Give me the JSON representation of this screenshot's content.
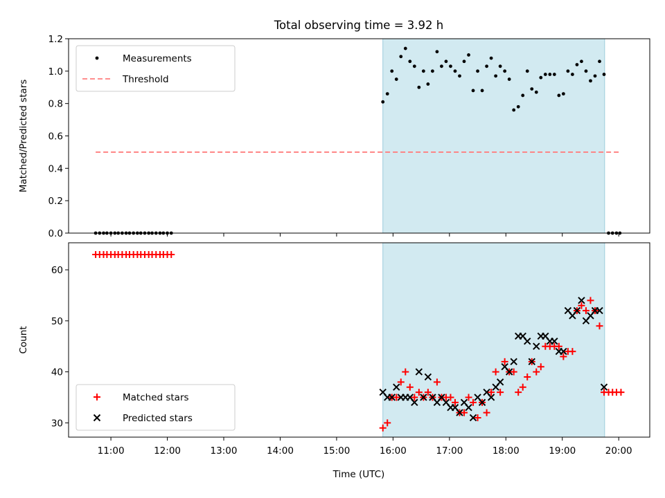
{
  "chart_data": {
    "title": "Total observing time = 3.92 h",
    "shaded_band": {
      "start_h": 15.82,
      "end_h": 19.75,
      "color": "#add8e6"
    },
    "xlim": [
      10.25,
      20.55
    ],
    "xticks": [
      {
        "h": 11,
        "label": "11:00"
      },
      {
        "h": 12,
        "label": "12:00"
      },
      {
        "h": 13,
        "label": "13:00"
      },
      {
        "h": 14,
        "label": "14:00"
      },
      {
        "h": 15,
        "label": "15:00"
      },
      {
        "h": 16,
        "label": "16:00"
      },
      {
        "h": 17,
        "label": "17:00"
      },
      {
        "h": 18,
        "label": "18:00"
      },
      {
        "h": 19,
        "label": "19:00"
      },
      {
        "h": 20,
        "label": "20:00"
      }
    ],
    "xlabel": "Time (UTC)",
    "panels": [
      {
        "type": "scatter",
        "ylabel": "Matched/Predicted stars",
        "ylim": [
          0,
          1.2
        ],
        "yticks": [
          {
            "v": 0.0,
            "label": "0.0"
          },
          {
            "v": 0.2,
            "label": "0.2"
          },
          {
            "v": 0.4,
            "label": "0.4"
          },
          {
            "v": 0.6,
            "label": "0.6"
          },
          {
            "v": 0.8,
            "label": "0.8"
          },
          {
            "v": 1.0,
            "label": "1.0"
          },
          {
            "v": 1.2,
            "label": "1.2"
          }
        ],
        "legend": {
          "position": "upper left",
          "entries": [
            "Measurements",
            "Threshold"
          ]
        },
        "threshold": {
          "name": "Threshold",
          "y": 0.5,
          "x_range": [
            10.73,
            20.02
          ],
          "color": "#ff7f7f"
        },
        "series": [
          {
            "name": "Measurements",
            "color": "#000000",
            "points": [
              [
                10.73,
                0
              ],
              [
                10.8,
                0
              ],
              [
                10.87,
                0
              ],
              [
                10.93,
                0
              ],
              [
                11.0,
                0
              ],
              [
                11.07,
                0
              ],
              [
                11.13,
                0
              ],
              [
                11.2,
                0
              ],
              [
                11.27,
                0
              ],
              [
                11.33,
                0
              ],
              [
                11.4,
                0
              ],
              [
                11.47,
                0
              ],
              [
                11.53,
                0
              ],
              [
                11.6,
                0
              ],
              [
                11.67,
                0
              ],
              [
                11.73,
                0
              ],
              [
                11.8,
                0
              ],
              [
                11.87,
                0
              ],
              [
                11.93,
                0
              ],
              [
                12.0,
                0
              ],
              [
                12.07,
                0
              ],
              [
                15.82,
                0.81
              ],
              [
                15.9,
                0.86
              ],
              [
                15.98,
                1.0
              ],
              [
                16.06,
                0.95
              ],
              [
                16.14,
                1.09
              ],
              [
                16.22,
                1.14
              ],
              [
                16.3,
                1.06
              ],
              [
                16.38,
                1.03
              ],
              [
                16.46,
                0.9
              ],
              [
                16.54,
                1.0
              ],
              [
                16.62,
                0.92
              ],
              [
                16.7,
                1.0
              ],
              [
                16.78,
                1.12
              ],
              [
                16.86,
                1.03
              ],
              [
                16.94,
                1.06
              ],
              [
                17.02,
                1.03
              ],
              [
                17.1,
                1.0
              ],
              [
                17.18,
                0.97
              ],
              [
                17.26,
                1.06
              ],
              [
                17.34,
                1.1
              ],
              [
                17.42,
                0.88
              ],
              [
                17.5,
                1.0
              ],
              [
                17.58,
                0.88
              ],
              [
                17.66,
                1.03
              ],
              [
                17.74,
                1.08
              ],
              [
                17.82,
                0.97
              ],
              [
                17.9,
                1.03
              ],
              [
                17.98,
                1.0
              ],
              [
                18.06,
                0.95
              ],
              [
                18.14,
                0.76
              ],
              [
                18.22,
                0.78
              ],
              [
                18.3,
                0.85
              ],
              [
                18.38,
                1.0
              ],
              [
                18.46,
                0.89
              ],
              [
                18.54,
                0.87
              ],
              [
                18.62,
                0.96
              ],
              [
                18.7,
                0.98
              ],
              [
                18.78,
                0.98
              ],
              [
                18.86,
                0.98
              ],
              [
                18.94,
                0.85
              ],
              [
                19.02,
                0.86
              ],
              [
                19.1,
                1.0
              ],
              [
                19.18,
                0.98
              ],
              [
                19.26,
                1.04
              ],
              [
                19.34,
                1.06
              ],
              [
                19.42,
                1.0
              ],
              [
                19.5,
                0.94
              ],
              [
                19.58,
                0.97
              ],
              [
                19.66,
                1.06
              ],
              [
                19.74,
                0.98
              ],
              [
                19.82,
                0
              ],
              [
                19.89,
                0
              ],
              [
                19.96,
                0
              ],
              [
                20.02,
                0
              ]
            ]
          }
        ]
      },
      {
        "type": "scatter",
        "ylabel": "Count",
        "ylim": [
          27.2,
          65.3
        ],
        "yticks": [
          {
            "v": 30,
            "label": "30"
          },
          {
            "v": 40,
            "label": "40"
          },
          {
            "v": 50,
            "label": "50"
          },
          {
            "v": 60,
            "label": "60"
          }
        ],
        "legend": {
          "position": "lower left",
          "entries": [
            "Matched stars",
            "Predicted stars"
          ]
        },
        "series": [
          {
            "name": "Matched stars",
            "marker": "+",
            "color": "#ff0000",
            "points": [
              [
                10.73,
                63
              ],
              [
                10.8,
                63
              ],
              [
                10.87,
                63
              ],
              [
                10.93,
                63
              ],
              [
                11.0,
                63
              ],
              [
                11.07,
                63
              ],
              [
                11.13,
                63
              ],
              [
                11.2,
                63
              ],
              [
                11.27,
                63
              ],
              [
                11.33,
                63
              ],
              [
                11.4,
                63
              ],
              [
                11.47,
                63
              ],
              [
                11.53,
                63
              ],
              [
                11.6,
                63
              ],
              [
                11.67,
                63
              ],
              [
                11.73,
                63
              ],
              [
                11.8,
                63
              ],
              [
                11.87,
                63
              ],
              [
                11.93,
                63
              ],
              [
                12.0,
                63
              ],
              [
                12.07,
                63
              ],
              [
                15.82,
                29
              ],
              [
                15.9,
                30
              ],
              [
                15.98,
                35
              ],
              [
                16.06,
                35
              ],
              [
                16.14,
                38
              ],
              [
                16.22,
                40
              ],
              [
                16.3,
                37
              ],
              [
                16.38,
                35
              ],
              [
                16.46,
                36
              ],
              [
                16.54,
                35
              ],
              [
                16.62,
                36
              ],
              [
                16.7,
                35
              ],
              [
                16.78,
                38
              ],
              [
                16.86,
                35
              ],
              [
                16.94,
                35
              ],
              [
                17.02,
                35
              ],
              [
                17.1,
                34
              ],
              [
                17.18,
                32
              ],
              [
                17.26,
                32
              ],
              [
                17.34,
                35
              ],
              [
                17.42,
                34
              ],
              [
                17.5,
                31
              ],
              [
                17.58,
                34
              ],
              [
                17.66,
                32
              ],
              [
                17.74,
                36
              ],
              [
                17.82,
                40
              ],
              [
                17.9,
                36
              ],
              [
                17.98,
                42
              ],
              [
                18.06,
                40
              ],
              [
                18.14,
                40
              ],
              [
                18.22,
                36
              ],
              [
                18.3,
                37
              ],
              [
                18.38,
                39
              ],
              [
                18.46,
                42
              ],
              [
                18.54,
                40
              ],
              [
                18.62,
                41
              ],
              [
                18.7,
                45
              ],
              [
                18.78,
                45
              ],
              [
                18.86,
                45
              ],
              [
                18.94,
                45
              ],
              [
                19.02,
                43
              ],
              [
                19.1,
                44
              ],
              [
                19.18,
                44
              ],
              [
                19.26,
                52
              ],
              [
                19.34,
                53
              ],
              [
                19.42,
                52
              ],
              [
                19.5,
                54
              ],
              [
                19.58,
                52
              ],
              [
                19.66,
                49
              ],
              [
                19.74,
                36
              ],
              [
                19.82,
                36
              ],
              [
                19.89,
                36
              ],
              [
                19.96,
                36
              ],
              [
                20.04,
                36
              ]
            ]
          },
          {
            "name": "Predicted stars",
            "marker": "x",
            "color": "#000000",
            "points": [
              [
                15.82,
                36
              ],
              [
                15.9,
                35
              ],
              [
                15.98,
                35
              ],
              [
                16.06,
                37
              ],
              [
                16.14,
                35
              ],
              [
                16.22,
                35
              ],
              [
                16.3,
                35
              ],
              [
                16.38,
                34
              ],
              [
                16.46,
                40
              ],
              [
                16.54,
                35
              ],
              [
                16.62,
                39
              ],
              [
                16.7,
                35
              ],
              [
                16.78,
                34
              ],
              [
                16.86,
                35
              ],
              [
                16.94,
                34
              ],
              [
                17.02,
                33
              ],
              [
                17.1,
                33
              ],
              [
                17.18,
                32
              ],
              [
                17.26,
                34
              ],
              [
                17.34,
                33
              ],
              [
                17.42,
                31
              ],
              [
                17.5,
                35
              ],
              [
                17.58,
                34
              ],
              [
                17.66,
                36
              ],
              [
                17.74,
                35
              ],
              [
                17.82,
                37
              ],
              [
                17.9,
                38
              ],
              [
                17.98,
                41
              ],
              [
                18.06,
                40
              ],
              [
                18.14,
                42
              ],
              [
                18.22,
                47
              ],
              [
                18.3,
                47
              ],
              [
                18.38,
                46
              ],
              [
                18.46,
                42
              ],
              [
                18.54,
                45
              ],
              [
                18.62,
                47
              ],
              [
                18.7,
                47
              ],
              [
                18.78,
                46
              ],
              [
                18.86,
                46
              ],
              [
                18.94,
                44
              ],
              [
                19.02,
                44
              ],
              [
                19.1,
                52
              ],
              [
                19.18,
                51
              ],
              [
                19.26,
                52
              ],
              [
                19.34,
                54
              ],
              [
                19.42,
                50
              ],
              [
                19.5,
                51
              ],
              [
                19.58,
                52
              ],
              [
                19.66,
                52
              ],
              [
                19.74,
                37
              ]
            ]
          }
        ]
      }
    ]
  }
}
